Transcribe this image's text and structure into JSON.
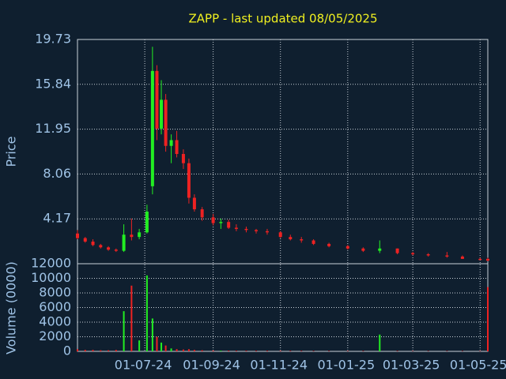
{
  "chart_data": [
    {
      "type": "candlestick",
      "title": "ZAPP - last updated 08/05/2025",
      "ylabel": "Price",
      "up_color": "#22ee22",
      "down_color": "#ee2222",
      "grid": true,
      "ylim": [
        0.28,
        19.73
      ],
      "yticks": [
        4.17,
        8.06,
        11.95,
        15.84,
        19.73
      ],
      "x": [
        "01-05-24",
        "08-05-24",
        "15-05-24",
        "22-05-24",
        "29-05-24",
        "05-06-24",
        "12-06-24",
        "19-06-24",
        "26-06-24",
        "03-07-24",
        "08-07-24",
        "12-07-24",
        "16-07-24",
        "20-07-24",
        "25-07-24",
        "30-07-24",
        "05-08-24",
        "10-08-24",
        "15-08-24",
        "22-08-24",
        "01-09-24",
        "08-09-24",
        "15-09-24",
        "22-09-24",
        "01-10-24",
        "10-10-24",
        "20-10-24",
        "01-11-24",
        "10-11-24",
        "20-11-24",
        "01-12-24",
        "15-12-24",
        "01-01-25",
        "15-01-25",
        "30-01-25",
        "15-02-25",
        "01-03-25",
        "15-03-25",
        "01-04-25",
        "15-04-25",
        "01-05-25",
        "08-05-25"
      ],
      "open": [
        2.9,
        2.5,
        2.2,
        1.9,
        1.7,
        1.5,
        1.4,
        2.8,
        2.6,
        3.0,
        7.0,
        17.0,
        12.0,
        14.5,
        10.5,
        11.0,
        9.8,
        9.0,
        6.0,
        5.0,
        4.3,
        3.8,
        3.9,
        3.4,
        3.3,
        3.2,
        3.1,
        3.0,
        2.6,
        2.4,
        2.3,
        2.0,
        1.8,
        1.6,
        1.4,
        1.6,
        1.2,
        1.1,
        1.0,
        0.9,
        0.7,
        0.7
      ],
      "high": [
        3.2,
        2.6,
        2.4,
        2.0,
        1.8,
        1.6,
        3.7,
        4.2,
        3.3,
        5.4,
        19.1,
        17.5,
        16.2,
        15.0,
        11.5,
        11.8,
        10.2,
        9.4,
        6.3,
        5.2,
        4.6,
        4.2,
        4.1,
        3.7,
        3.5,
        3.3,
        3.3,
        3.1,
        2.8,
        2.6,
        2.4,
        2.1,
        1.9,
        1.7,
        2.3,
        1.6,
        1.3,
        1.2,
        1.3,
        1.0,
        0.8,
        0.8
      ],
      "low": [
        2.4,
        2.1,
        1.8,
        1.6,
        1.4,
        1.3,
        1.3,
        2.3,
        2.4,
        2.9,
        6.3,
        11.0,
        11.5,
        10.0,
        9.0,
        9.5,
        8.5,
        5.5,
        4.8,
        4.0,
        3.6,
        3.3,
        3.3,
        3.1,
        3.0,
        2.9,
        2.8,
        2.5,
        2.3,
        2.1,
        1.9,
        1.7,
        1.5,
        1.3,
        1.2,
        1.1,
        1.0,
        0.9,
        0.8,
        0.7,
        0.6,
        0.5
      ],
      "close": [
        2.5,
        2.2,
        1.9,
        1.7,
        1.5,
        1.4,
        2.8,
        2.6,
        3.0,
        4.8,
        17.0,
        12.0,
        14.5,
        10.5,
        11.0,
        9.8,
        9.0,
        6.0,
        5.0,
        4.3,
        3.8,
        3.9,
        3.4,
        3.3,
        3.2,
        3.1,
        3.0,
        2.6,
        2.4,
        2.3,
        2.0,
        1.8,
        1.6,
        1.4,
        1.6,
        1.2,
        1.1,
        1.0,
        0.9,
        0.7,
        0.6,
        0.55
      ]
    },
    {
      "type": "volume",
      "ylabel": "Volume (0000)",
      "grid": true,
      "ylim": [
        0,
        12000
      ],
      "yticks": [
        0,
        2000,
        4000,
        6000,
        8000,
        10000,
        12000
      ],
      "xlim": [
        "01-05-24",
        "08-05-25"
      ],
      "xticks": [
        "01-07-24",
        "01-09-24",
        "01-11-24",
        "01-01-25",
        "01-03-25",
        "01-05-25"
      ],
      "values": [
        300,
        200,
        200,
        150,
        150,
        200,
        5500,
        9000,
        1500,
        10400,
        4500,
        2000,
        1200,
        800,
        400,
        300,
        250,
        300,
        200,
        150,
        120,
        100,
        100,
        90,
        90,
        80,
        80,
        80,
        70,
        70,
        60,
        60,
        60,
        60,
        2300,
        60,
        50,
        50,
        50,
        50,
        50,
        8800
      ]
    }
  ]
}
